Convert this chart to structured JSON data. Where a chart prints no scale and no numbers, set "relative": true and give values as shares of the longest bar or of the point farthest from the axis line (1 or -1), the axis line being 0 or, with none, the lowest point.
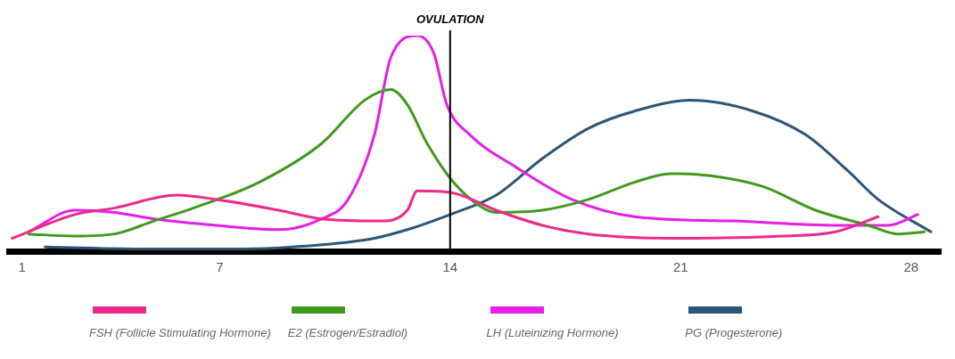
{
  "chart_data": {
    "type": "line",
    "relative": true,
    "xlim": [
      0.6,
      28.9
    ],
    "xticks": [
      1,
      7,
      14,
      21,
      28
    ],
    "grid": false,
    "marker": "none",
    "legend": "bottom",
    "ref_lines": [
      {
        "axis": "x",
        "value": 14,
        "label": "OVULATION",
        "color": "#000000"
      }
    ],
    "series": [
      {
        "name": "FSH (Follicle Stimulating Hormone)",
        "color": "#ec2a8c",
        "x": [
          0.7,
          2.6,
          3.8,
          5.7,
          6.9,
          8.8,
          10.1,
          11.9,
          12.7,
          13.0,
          14.1,
          15.4,
          16.8,
          18.2,
          21.0,
          24.1,
          25.7,
          27.0
        ],
        "values": [
          0.06,
          0.17,
          0.2,
          0.26,
          0.24,
          0.19,
          0.15,
          0.14,
          0.19,
          0.28,
          0.27,
          0.19,
          0.12,
          0.08,
          0.06,
          0.07,
          0.09,
          0.16
        ]
      },
      {
        "name": "E2 (Estrogen/Estradiol)",
        "color": "#3f9a1c",
        "x": [
          1.2,
          2.6,
          3.8,
          5.0,
          6.2,
          8.2,
          10.1,
          11.4,
          12.2,
          12.7,
          13.3,
          14.1,
          14.9,
          15.4,
          16.8,
          18.2,
          19.6,
          20.7,
          21.9,
          23.5,
          25.1,
          26.7,
          27.6,
          28.4
        ],
        "values": [
          0.08,
          0.07,
          0.08,
          0.14,
          0.2,
          0.32,
          0.5,
          0.7,
          0.75,
          0.68,
          0.5,
          0.32,
          0.21,
          0.18,
          0.19,
          0.24,
          0.32,
          0.36,
          0.35,
          0.3,
          0.19,
          0.12,
          0.08,
          0.09
        ]
      },
      {
        "name": "LH (Luteinizing Hormone)",
        "color": "#e61ee6",
        "x": [
          1.2,
          2.6,
          3.8,
          5.0,
          6.9,
          8.8,
          10.1,
          10.9,
          11.7,
          12.2,
          13.0,
          13.5,
          13.9,
          14.6,
          16.0,
          17.7,
          19.6,
          22.6,
          25.7,
          27.3,
          28.2
        ],
        "values": [
          0.09,
          0.19,
          0.18,
          0.15,
          0.12,
          0.1,
          0.15,
          0.24,
          0.54,
          0.9,
          1,
          0.92,
          0.68,
          0.54,
          0.39,
          0.24,
          0.16,
          0.14,
          0.12,
          0.12,
          0.17
        ]
      },
      {
        "name": "PG (Progesterone)",
        "color": "#2d5577",
        "x": [
          1.7,
          5.0,
          7.5,
          10.1,
          11.7,
          12.7,
          14.0,
          15.4,
          16.8,
          18.2,
          19.6,
          21.3,
          23.2,
          24.8,
          26.1,
          27.0,
          28.6
        ],
        "values": [
          0.02,
          0.01,
          0.01,
          0.03,
          0.06,
          0.1,
          0.17,
          0.26,
          0.43,
          0.57,
          0.65,
          0.7,
          0.65,
          0.54,
          0.37,
          0.24,
          0.09
        ]
      }
    ]
  }
}
